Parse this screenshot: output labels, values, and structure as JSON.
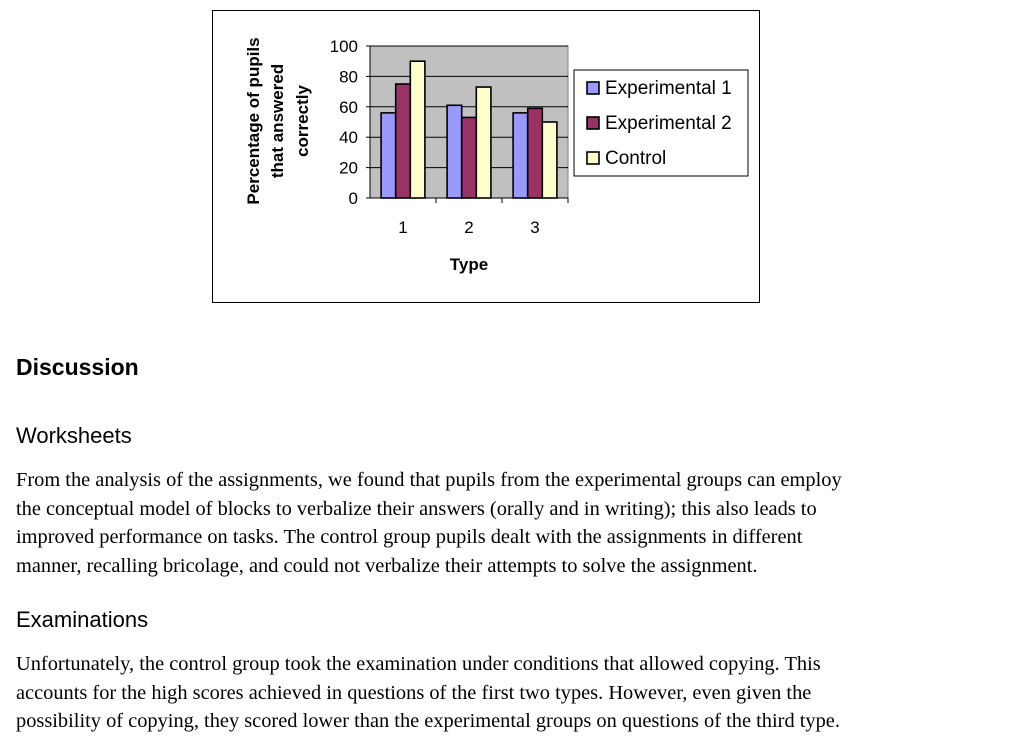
{
  "chart_data": {
    "type": "bar",
    "categories": [
      "1",
      "2",
      "3"
    ],
    "series": [
      {
        "name": "Experimental 1",
        "values": [
          56,
          61,
          56
        ],
        "color": "#9999ff"
      },
      {
        "name": "Experimental 2",
        "values": [
          75,
          53,
          59
        ],
        "color": "#993366"
      },
      {
        "name": "Control",
        "values": [
          90,
          73,
          50
        ],
        "color": "#ffffcc"
      }
    ],
    "title": "",
    "xlabel": "Type",
    "ylabel": "Percentage of pupils that answered correctly",
    "ylabel_lines": [
      "Percentage of pupils",
      "that answered",
      "correctly"
    ],
    "yticks": [
      0,
      20,
      40,
      60,
      80,
      100
    ],
    "ylim": [
      0,
      100
    ],
    "plot_background": "#c0c0c0",
    "grid": true,
    "legend_position": "right"
  },
  "document": {
    "section_heading": "Discussion",
    "subsections": [
      {
        "heading": "Worksheets",
        "lines": [
          "From the analysis of the assignments, we found that pupils from the experimental groups can employ",
          "the conceptual model of blocks to verbalize their answers (orally and in writing); this also leads to",
          "improved performance on tasks. The control group pupils dealt with the assignments in different",
          "manner, recalling bricolage, and could not verbalize their attempts to solve the assignment."
        ]
      },
      {
        "heading": "Examinations",
        "lines": [
          "Unfortunately, the control group took the examination under conditions that allowed copying. This",
          "accounts for the high scores achieved in questions of the first two types. However, even given the",
          "possibility of copying, they scored lower than the experimental groups on questions of the third type."
        ]
      }
    ]
  }
}
